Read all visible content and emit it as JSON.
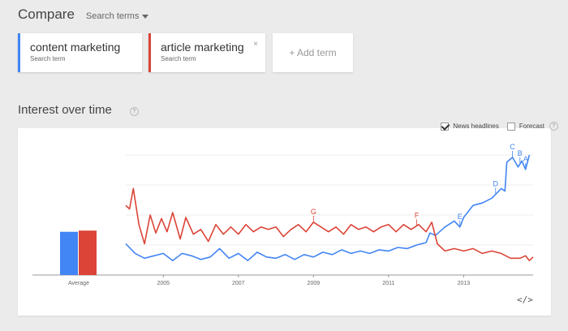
{
  "header": {
    "title": "Compare",
    "search_terms_label": "Search terms"
  },
  "terms": [
    {
      "label": "content marketing",
      "sub": "Search term",
      "color": "#4285f4"
    },
    {
      "label": "article marketing",
      "sub": "Search term",
      "color": "#db4437",
      "remove": "×"
    }
  ],
  "add_term_label": "+ Add term",
  "section": {
    "title": "Interest over time",
    "help": "?"
  },
  "options": {
    "news_headlines": "News headlines",
    "news_checked": true,
    "forecast": "Forecast",
    "forecast_checked": false,
    "help": "?"
  },
  "embed_label": "</>",
  "chart_data": {
    "type": "line",
    "x_range": [
      2004,
      2014.85
    ],
    "y_range": [
      0,
      100
    ],
    "x_ticks": [
      "2005",
      "2007",
      "2009",
      "2011",
      "2013"
    ],
    "grid": true,
    "average_bars": {
      "label": "Average",
      "values": [
        36,
        37
      ]
    },
    "series": [
      {
        "name": "content marketing",
        "color": "#4285f4",
        "points": [
          [
            2004.0,
            26
          ],
          [
            2004.25,
            18
          ],
          [
            2004.5,
            14
          ],
          [
            2004.75,
            16
          ],
          [
            2005.0,
            18
          ],
          [
            2005.25,
            12
          ],
          [
            2005.5,
            18
          ],
          [
            2005.75,
            16
          ],
          [
            2006.0,
            13
          ],
          [
            2006.25,
            15
          ],
          [
            2006.5,
            22
          ],
          [
            2006.75,
            14
          ],
          [
            2007.0,
            18
          ],
          [
            2007.25,
            12
          ],
          [
            2007.5,
            19
          ],
          [
            2007.75,
            15
          ],
          [
            2008.0,
            14
          ],
          [
            2008.25,
            17
          ],
          [
            2008.5,
            13
          ],
          [
            2008.75,
            17
          ],
          [
            2009.0,
            15
          ],
          [
            2009.25,
            19
          ],
          [
            2009.5,
            17
          ],
          [
            2009.75,
            21
          ],
          [
            2010.0,
            18
          ],
          [
            2010.25,
            20
          ],
          [
            2010.5,
            18
          ],
          [
            2010.75,
            21
          ],
          [
            2011.0,
            20
          ],
          [
            2011.25,
            23
          ],
          [
            2011.5,
            22
          ],
          [
            2011.75,
            25
          ],
          [
            2012.0,
            27
          ],
          [
            2012.1,
            35
          ],
          [
            2012.25,
            33
          ],
          [
            2012.5,
            40
          ],
          [
            2012.75,
            45
          ],
          [
            2012.9,
            40
          ],
          [
            2013.0,
            48
          ],
          [
            2013.25,
            58
          ],
          [
            2013.5,
            60
          ],
          [
            2013.75,
            64
          ],
          [
            2014.0,
            72
          ],
          [
            2014.1,
            70
          ],
          [
            2014.15,
            94
          ],
          [
            2014.3,
            98
          ],
          [
            2014.45,
            90
          ],
          [
            2014.55,
            95
          ],
          [
            2014.65,
            88
          ],
          [
            2014.75,
            100
          ]
        ]
      },
      {
        "name": "article marketing",
        "color": "#db4437",
        "points": [
          [
            2004.0,
            58
          ],
          [
            2004.1,
            55
          ],
          [
            2004.2,
            72
          ],
          [
            2004.35,
            42
          ],
          [
            2004.5,
            26
          ],
          [
            2004.65,
            50
          ],
          [
            2004.8,
            35
          ],
          [
            2004.95,
            47
          ],
          [
            2005.1,
            36
          ],
          [
            2005.25,
            52
          ],
          [
            2005.45,
            30
          ],
          [
            2005.6,
            48
          ],
          [
            2005.8,
            34
          ],
          [
            2006.0,
            38
          ],
          [
            2006.2,
            28
          ],
          [
            2006.4,
            42
          ],
          [
            2006.6,
            34
          ],
          [
            2006.8,
            40
          ],
          [
            2007.0,
            34
          ],
          [
            2007.2,
            42
          ],
          [
            2007.4,
            36
          ],
          [
            2007.6,
            40
          ],
          [
            2007.8,
            38
          ],
          [
            2008.0,
            40
          ],
          [
            2008.2,
            32
          ],
          [
            2008.4,
            38
          ],
          [
            2008.6,
            42
          ],
          [
            2008.8,
            36
          ],
          [
            2009.0,
            44
          ],
          [
            2009.2,
            40
          ],
          [
            2009.4,
            36
          ],
          [
            2009.6,
            40
          ],
          [
            2009.8,
            34
          ],
          [
            2010.0,
            42
          ],
          [
            2010.2,
            38
          ],
          [
            2010.4,
            40
          ],
          [
            2010.6,
            36
          ],
          [
            2010.8,
            40
          ],
          [
            2011.0,
            42
          ],
          [
            2011.2,
            36
          ],
          [
            2011.4,
            42
          ],
          [
            2011.6,
            38
          ],
          [
            2011.8,
            42
          ],
          [
            2012.0,
            36
          ],
          [
            2012.15,
            44
          ],
          [
            2012.3,
            26
          ],
          [
            2012.5,
            20
          ],
          [
            2012.75,
            22
          ],
          [
            2013.0,
            20
          ],
          [
            2013.25,
            22
          ],
          [
            2013.5,
            18
          ],
          [
            2013.75,
            20
          ],
          [
            2014.0,
            18
          ],
          [
            2014.25,
            14
          ],
          [
            2014.5,
            14
          ],
          [
            2014.65,
            16
          ],
          [
            2014.75,
            12
          ],
          [
            2014.85,
            15
          ]
        ]
      }
    ],
    "annotations": [
      {
        "label": "G",
        "x": 2009.0,
        "series": 1,
        "color": "#db4437"
      },
      {
        "label": "F",
        "x": 2011.75,
        "series": 1,
        "color": "#db4437"
      },
      {
        "label": "E",
        "x": 2012.9,
        "series": 0,
        "color": "#4285f4"
      },
      {
        "label": "D",
        "x": 2013.85,
        "series": 0,
        "color": "#4285f4"
      },
      {
        "label": "C",
        "x": 2014.3,
        "series": 0,
        "color": "#4285f4"
      },
      {
        "label": "B",
        "x": 2014.5,
        "series": 0,
        "color": "#4285f4"
      },
      {
        "label": "A",
        "x": 2014.65,
        "series": 0,
        "color": "#4285f4"
      }
    ]
  }
}
